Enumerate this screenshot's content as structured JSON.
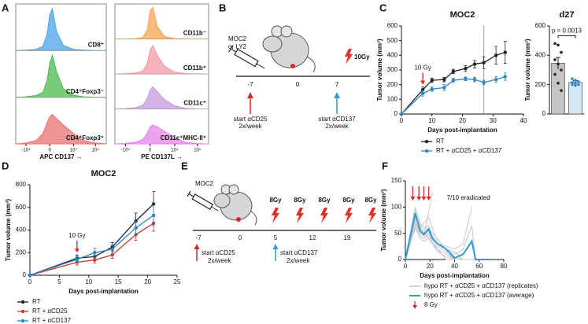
{
  "panel_labels": [
    "A",
    "B",
    "C",
    "D",
    "E",
    "F"
  ],
  "diagram_b": {
    "injection": [
      "MOC2",
      "or LY2"
    ],
    "dose": "10Gy",
    "timeline": [
      "-7",
      "0",
      "7"
    ],
    "start_left": [
      "start αCD25",
      "2x/week"
    ],
    "start_right": [
      "start αCD137",
      "2x/week"
    ]
  },
  "diagram_e": {
    "injection": "MOC2",
    "doses": [
      "8Gy",
      "8Gy",
      "8Gy",
      "8Gy",
      "8Gy"
    ],
    "timeline": [
      "-7",
      "0",
      "5",
      "12",
      "19"
    ],
    "start_left": [
      "start αCD25",
      "2x/week"
    ],
    "start_right": [
      "start αCD137",
      "2x/week"
    ]
  },
  "chart_data": [
    {
      "type": "density",
      "xlabel": "APC CD137 →",
      "x": [
        -30000,
        -10000,
        -3000,
        -1000,
        -300,
        0,
        300,
        1000,
        3000,
        10000,
        30000,
        100000,
        300000
      ],
      "xlim": [
        -30000,
        300000
      ],
      "xscale": "biexponential",
      "ylim": [
        0,
        100
      ],
      "xticks": [
        {
          "value": -10000,
          "label": "-10⁴"
        },
        0,
        {
          "value": 10000,
          "label": "10⁴"
        },
        {
          "value": 100000,
          "label": "10⁵"
        }
      ],
      "series": [
        {
          "name": "CD8⁺",
          "color": "#4aa3e8",
          "values": [
            0,
            1,
            3,
            10,
            40,
            85,
            100,
            45,
            12,
            3,
            1,
            0,
            0
          ]
        },
        {
          "name": "CD4⁺Foxp3⁻",
          "color": "#4cb84c",
          "values": [
            0,
            1,
            4,
            12,
            40,
            80,
            100,
            60,
            20,
            5,
            1,
            0,
            0
          ]
        },
        {
          "name": "CD4⁺Foxp3⁺",
          "color": "#e87373",
          "values": [
            0,
            2,
            8,
            25,
            50,
            65,
            70,
            60,
            45,
            25,
            8,
            2,
            0
          ]
        }
      ]
    },
    {
      "type": "density",
      "xlabel": "PE CD137L →",
      "x": [
        -30000,
        -10000,
        -3000,
        -1000,
        -300,
        0,
        300,
        1000,
        3000,
        10000,
        30000,
        100000,
        300000
      ],
      "xlim": [
        -30000,
        300000
      ],
      "xscale": "biexponential",
      "ylim": [
        0,
        100
      ],
      "xticks": [
        {
          "value": -10000,
          "label": "-10⁴"
        },
        0,
        {
          "value": 10000,
          "label": "10⁴"
        },
        {
          "value": 100000,
          "label": "10⁵"
        }
      ],
      "series": [
        {
          "name": "CD11b⁻",
          "color": "#f5a44f",
          "values": [
            0,
            0,
            1,
            5,
            30,
            90,
            100,
            40,
            8,
            1,
            0,
            0,
            0
          ]
        },
        {
          "name": "CD11b⁺",
          "color": "#f29aa4",
          "values": [
            0,
            1,
            3,
            10,
            35,
            75,
            90,
            60,
            25,
            6,
            1,
            0,
            0
          ]
        },
        {
          "name": "CD11c⁺",
          "color": "#c49ae0",
          "values": [
            0,
            1,
            4,
            12,
            35,
            60,
            70,
            55,
            30,
            10,
            2,
            0,
            0
          ]
        },
        {
          "name": "CD11c⁺MHC-II⁺",
          "color": "#e384e6",
          "values": [
            0,
            2,
            6,
            15,
            35,
            55,
            60,
            55,
            40,
            20,
            5,
            1,
            0
          ]
        }
      ]
    },
    {
      "type": "line",
      "title": "MOC2",
      "xlabel": "Days post-implantation",
      "ylabel": "Tumor volume (mm³)",
      "x": [
        0,
        7,
        10,
        14,
        17,
        21,
        24,
        27,
        31,
        34
      ],
      "xlim": [
        0,
        40
      ],
      "xticks": [
        0,
        10,
        20,
        30,
        40
      ],
      "ylim": [
        0,
        600
      ],
      "yticks": [
        0,
        100,
        200,
        300,
        400,
        500,
        600
      ],
      "markers": true,
      "vline": 27,
      "annotation": {
        "text": "10 Gy",
        "x": 7
      },
      "series": [
        {
          "name": "RT",
          "color": "#222222",
          "values": [
            0,
            165,
            230,
            235,
            290,
            310,
            340,
            350,
            400,
            420
          ],
          "errors": [
            0,
            20,
            15,
            15,
            15,
            20,
            25,
            40,
            60,
            75
          ]
        },
        {
          "name": "RT + αCD25 + αCD137",
          "color": "#2e86c1",
          "values": [
            0,
            140,
            170,
            180,
            230,
            240,
            235,
            215,
            235,
            255
          ],
          "errors": [
            0,
            18,
            15,
            20,
            15,
            12,
            15,
            15,
            20,
            25
          ]
        }
      ]
    },
    {
      "type": "bar",
      "title": "d27",
      "ylabel": "Tumor volume (mm³)",
      "categories": [
        null,
        null
      ],
      "values": [
        345,
        215
      ],
      "errors": [
        40,
        12
      ],
      "colors": [
        "#c4c4c4",
        "#d6e8f7"
      ],
      "point_colors": [
        "#222222",
        "#2e86c1"
      ],
      "points": [
        [
          480,
          470,
          420,
          370,
          340,
          300,
          270,
          210,
          160
        ],
        [
          240,
          230,
          220,
          215,
          210,
          200,
          200,
          195
        ]
      ],
      "ylim": [
        0,
        600
      ],
      "yticks": [
        0,
        200,
        400,
        600
      ],
      "annotation": "p = 0.0013"
    },
    {
      "type": "line",
      "title": "MOC2",
      "xlabel": "Days post-implantation",
      "ylabel": "Tumor volume (mm³)",
      "x": [
        0,
        8,
        11,
        14,
        18,
        21
      ],
      "xlim": [
        0,
        25
      ],
      "xticks": [
        0,
        5,
        10,
        15,
        20,
        25
      ],
      "ylim": [
        0,
        800
      ],
      "yticks": [
        0,
        200,
        400,
        600,
        800
      ],
      "markers": true,
      "annotation": {
        "text": "10 Gy",
        "x": 8
      },
      "series": [
        {
          "name": "RT",
          "color": "#222222",
          "values": [
            0,
            150,
            165,
            250,
            480,
            630
          ],
          "errors": [
            0,
            30,
            35,
            40,
            70,
            110
          ]
        },
        {
          "name": "RT + αCD25",
          "color": "#c0392b",
          "values": [
            0,
            115,
            135,
            180,
            360,
            460
          ],
          "errors": [
            0,
            25,
            25,
            30,
            50,
            70
          ]
        },
        {
          "name": "RT + αCD137",
          "color": "#2e86c1",
          "values": [
            0,
            140,
            200,
            230,
            420,
            530
          ],
          "errors": [
            0,
            30,
            40,
            40,
            60,
            90
          ]
        }
      ]
    },
    {
      "type": "line",
      "xlabel": "Days post-implantation",
      "ylabel": "Tumor volume (mm³)",
      "x": [
        0,
        8,
        12,
        15,
        19,
        22,
        26,
        33,
        40,
        47,
        54,
        57,
        61,
        68
      ],
      "xlim": [
        0,
        80
      ],
      "xticks": [
        0,
        20,
        40,
        60,
        80
      ],
      "ylim": [
        0,
        150
      ],
      "yticks": [
        0,
        50,
        100,
        150
      ],
      "markers": false,
      "note": "7/10 eradicated",
      "dose_days": [
        6,
        11,
        15,
        19
      ],
      "dose_label": "8 Gy",
      "replicates": {
        "name": "hypo RT + αCD25 + αCD137 (replicates)",
        "color": "#c8c8c8",
        "values": [
          [
            0,
            95,
            70,
            60,
            65,
            40,
            30,
            20,
            0,
            0,
            0,
            0,
            null,
            null
          ],
          [
            0,
            75,
            50,
            45,
            90,
            130,
            null,
            null,
            null,
            null,
            null,
            null,
            null,
            null
          ],
          [
            0,
            80,
            60,
            55,
            60,
            50,
            40,
            20,
            10,
            20,
            65,
            0,
            0,
            0
          ],
          [
            0,
            70,
            45,
            40,
            50,
            30,
            20,
            10,
            0,
            0,
            0,
            null,
            null,
            null
          ],
          [
            0,
            100,
            65,
            50,
            45,
            35,
            20,
            0,
            0,
            0,
            null,
            null,
            null,
            null
          ],
          [
            0,
            85,
            60,
            70,
            80,
            60,
            35,
            20,
            5,
            0,
            0,
            0,
            0,
            0
          ],
          [
            0,
            60,
            40,
            35,
            40,
            30,
            25,
            15,
            0,
            0,
            0,
            null,
            null,
            null
          ],
          [
            0,
            90,
            55,
            45,
            55,
            40,
            30,
            25,
            20,
            30,
            100,
            null,
            null,
            null
          ],
          [
            0,
            75,
            50,
            50,
            40,
            30,
            15,
            5,
            0,
            0,
            0,
            0,
            null,
            null
          ],
          [
            0,
            65,
            45,
            40,
            50,
            45,
            30,
            20,
            15,
            0,
            0,
            0,
            0,
            0
          ]
        ]
      },
      "series": [
        {
          "name": "hypo RT + αCD25 + αCD137 (average)",
          "color": "#2e9bd6",
          "values": [
            0,
            88,
            55,
            48,
            58,
            40,
            30,
            20,
            3,
            10,
            35,
            0,
            0,
            0
          ]
        }
      ]
    }
  ]
}
